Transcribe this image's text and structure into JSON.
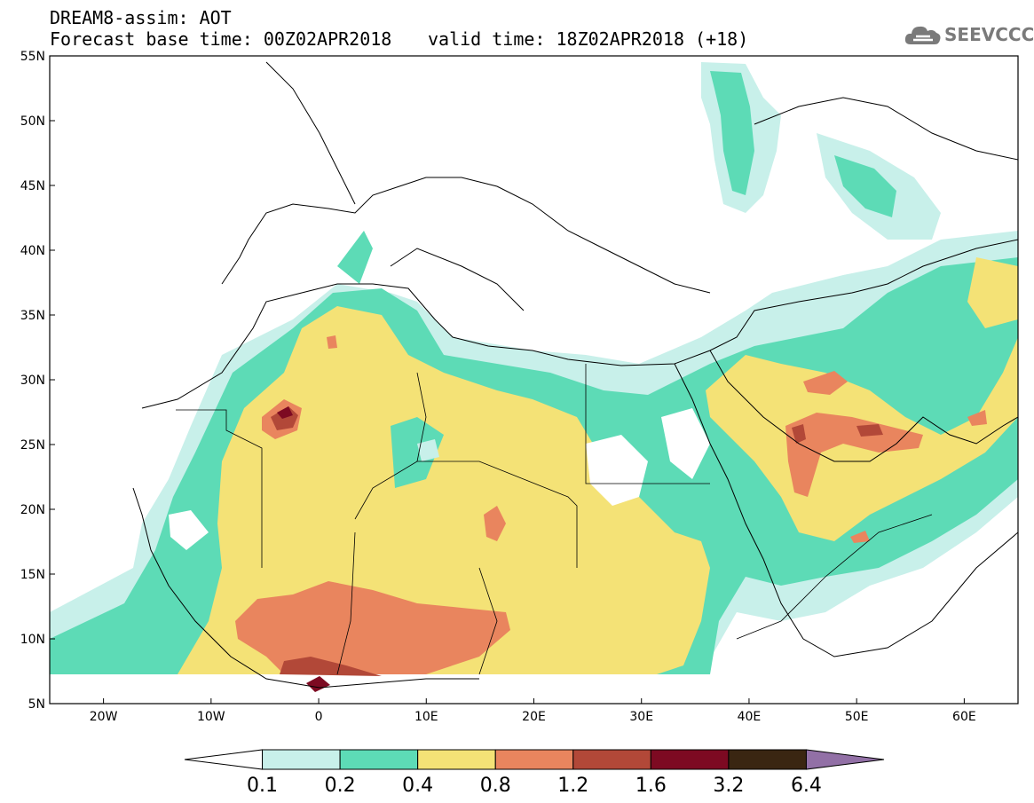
{
  "title": {
    "line1": "DREAM8-assim: AOT",
    "line2": "Forecast base time: 00Z02APR2018",
    "valid": "valid time: 18Z02APR2018 (+18)"
  },
  "logo": {
    "text": "SEEVCCC",
    "icon": "cloud-icon"
  },
  "map": {
    "lon_range": [
      -25,
      65
    ],
    "lat_range": [
      5,
      55
    ],
    "lon_ticks": [
      {
        "value": -20,
        "label": "20W"
      },
      {
        "value": -10,
        "label": "10W"
      },
      {
        "value": 0,
        "label": "0"
      },
      {
        "value": 10,
        "label": "10E"
      },
      {
        "value": 20,
        "label": "20E"
      },
      {
        "value": 30,
        "label": "30E"
      },
      {
        "value": 40,
        "label": "40E"
      },
      {
        "value": 50,
        "label": "50E"
      },
      {
        "value": 60,
        "label": "60E"
      }
    ],
    "lat_ticks": [
      {
        "value": 55,
        "label": "55N"
      },
      {
        "value": 50,
        "label": "50N"
      },
      {
        "value": 45,
        "label": "45N"
      },
      {
        "value": 40,
        "label": "40N"
      },
      {
        "value": 35,
        "label": "35N"
      },
      {
        "value": 30,
        "label": "30N"
      },
      {
        "value": 25,
        "label": "25N"
      },
      {
        "value": 20,
        "label": "20N"
      },
      {
        "value": 15,
        "label": "15N"
      },
      {
        "value": 10,
        "label": "10N"
      },
      {
        "value": 5,
        "label": "5N"
      }
    ]
  },
  "colorbar": {
    "bins": [
      {
        "color": "#c8f0ea"
      },
      {
        "color": "#5ddbb6"
      },
      {
        "color": "#f4e276"
      },
      {
        "color": "#e9855e"
      },
      {
        "color": "#b24838"
      },
      {
        "color": "#7d0a22"
      },
      {
        "color": "#3a2612"
      }
    ],
    "under_color": "#ffffff",
    "over_color": "#9270a6",
    "labels": [
      "0.1",
      "0.2",
      "0.4",
      "0.8",
      "1.2",
      "1.6",
      "3.2",
      "6.4"
    ]
  }
}
